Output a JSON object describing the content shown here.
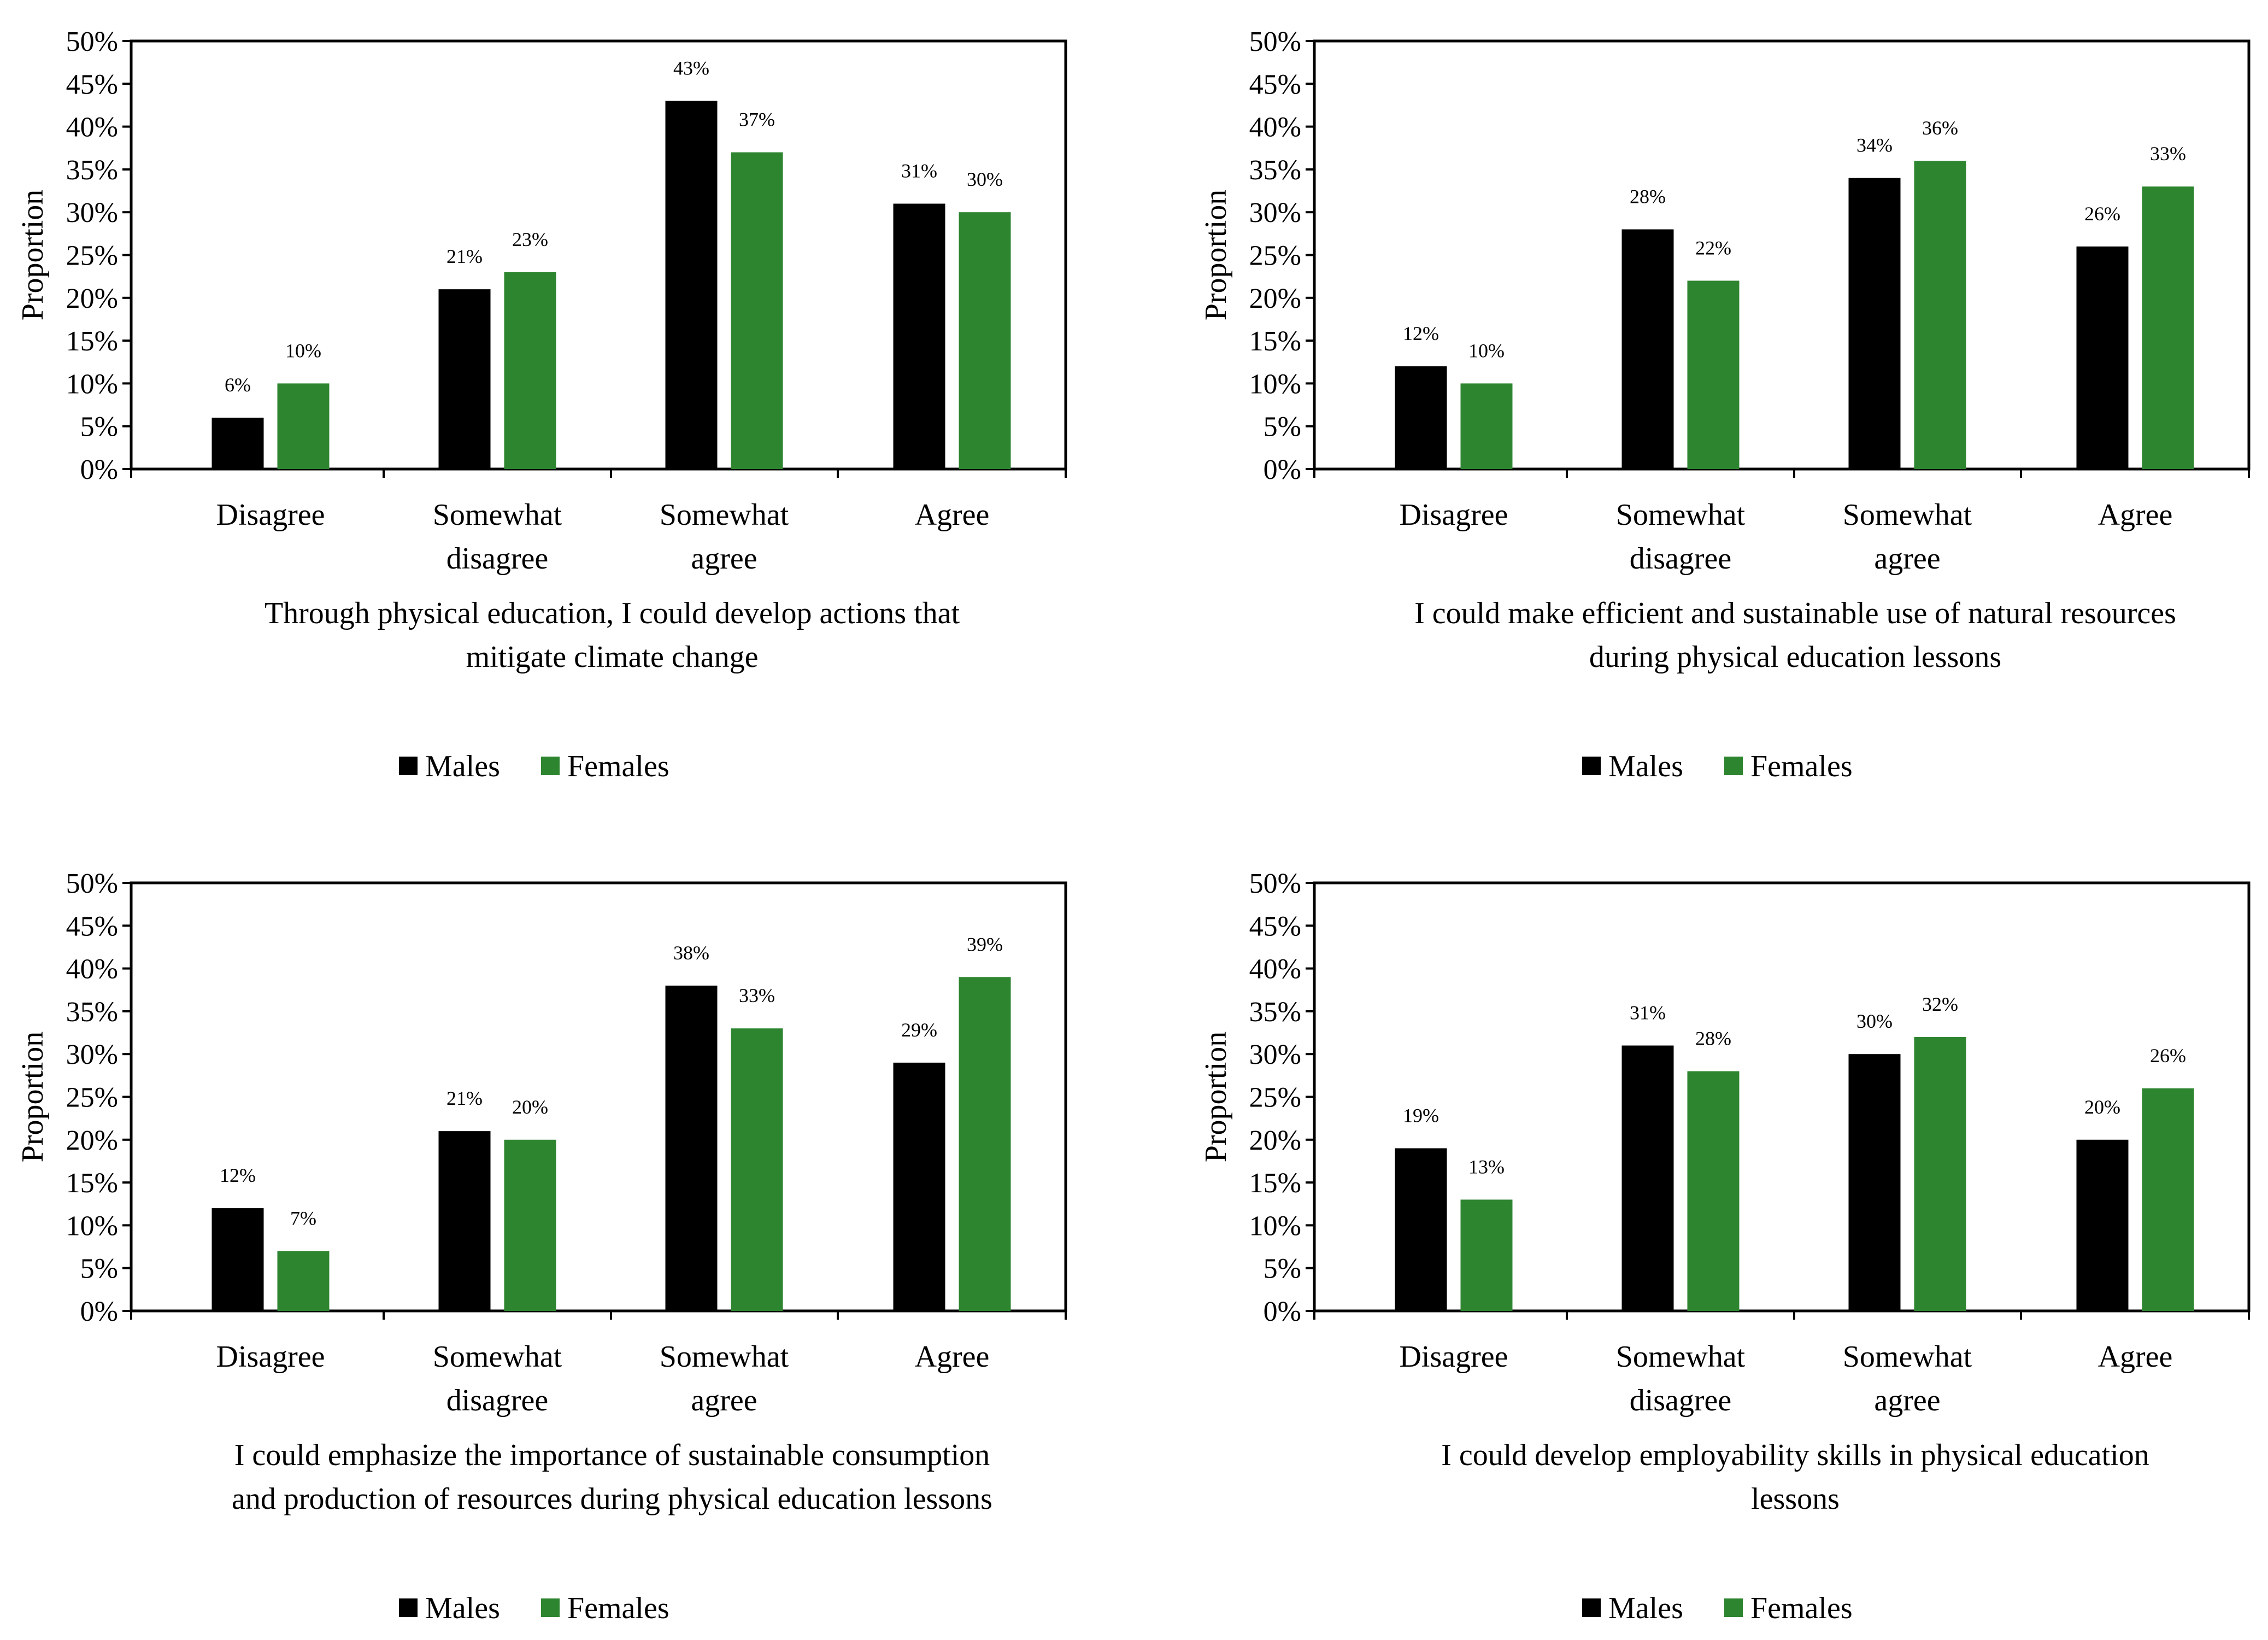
{
  "legend": [
    "Males",
    "Females"
  ],
  "colors": {
    "Males": "#000000",
    "Females": "#2e8530"
  },
  "chart_data": [
    {
      "type": "bar",
      "categories": [
        [
          "Disagree"
        ],
        [
          "Somewhat",
          "disagree"
        ],
        [
          "Somewhat",
          "agree"
        ],
        [
          "Agree"
        ]
      ],
      "series": [
        {
          "name": "Males",
          "values": [
            6,
            21,
            43,
            31
          ],
          "labels": [
            "6%",
            "21%",
            "43%",
            "31%"
          ]
        },
        {
          "name": "Females",
          "values": [
            10,
            23,
            37,
            30
          ],
          "labels": [
            "10%",
            "23%",
            "37%",
            "30%"
          ]
        }
      ],
      "xlabel": [
        "Through physical education, I could develop actions that",
        "mitigate climate change"
      ],
      "ylabel": "Proportion",
      "ylim": [
        0,
        50
      ],
      "yticks": [
        "0%",
        "5%",
        "10%",
        "15%",
        "20%",
        "25%",
        "30%",
        "35%",
        "40%",
        "45%",
        "50%"
      ],
      "grid": false,
      "legend_position": "bottom"
    },
    {
      "type": "bar",
      "categories": [
        [
          "Disagree"
        ],
        [
          "Somewhat",
          "disagree"
        ],
        [
          "Somewhat",
          "agree"
        ],
        [
          "Agree"
        ]
      ],
      "series": [
        {
          "name": "Males",
          "values": [
            12,
            28,
            34,
            26
          ],
          "labels": [
            "12%",
            "28%",
            "34%",
            "26%"
          ]
        },
        {
          "name": "Females",
          "values": [
            10,
            22,
            36,
            33
          ],
          "labels": [
            "10%",
            "22%",
            "36%",
            "33%"
          ]
        }
      ],
      "xlabel": [
        "I could make efficient and sustainable use of natural resources",
        "during physical education lessons"
      ],
      "ylabel": "Proportion",
      "ylim": [
        0,
        50
      ],
      "yticks": [
        "0%",
        "5%",
        "10%",
        "15%",
        "20%",
        "25%",
        "30%",
        "35%",
        "40%",
        "45%",
        "50%"
      ],
      "grid": false,
      "legend_position": "bottom"
    },
    {
      "type": "bar",
      "categories": [
        [
          "Disagree"
        ],
        [
          "Somewhat",
          "disagree"
        ],
        [
          "Somewhat",
          "agree"
        ],
        [
          "Agree"
        ]
      ],
      "series": [
        {
          "name": "Males",
          "values": [
            12,
            21,
            38,
            29
          ],
          "labels": [
            "12%",
            "21%",
            "38%",
            "29%"
          ]
        },
        {
          "name": "Females",
          "values": [
            7,
            20,
            33,
            39
          ],
          "labels": [
            "7%",
            "20%",
            "33%",
            "39%"
          ]
        }
      ],
      "xlabel": [
        "I could emphasize the importance of sustainable consumption",
        "and production of resources during physical education lessons"
      ],
      "ylabel": "Proportion",
      "ylim": [
        0,
        50
      ],
      "yticks": [
        "0%",
        "5%",
        "10%",
        "15%",
        "20%",
        "25%",
        "30%",
        "35%",
        "40%",
        "45%",
        "50%"
      ],
      "grid": false,
      "legend_position": "bottom"
    },
    {
      "type": "bar",
      "categories": [
        [
          "Disagree"
        ],
        [
          "Somewhat",
          "disagree"
        ],
        [
          "Somewhat",
          "agree"
        ],
        [
          "Agree"
        ]
      ],
      "series": [
        {
          "name": "Males",
          "values": [
            19,
            31,
            30,
            20
          ],
          "labels": [
            "19%",
            "31%",
            "30%",
            "20%"
          ]
        },
        {
          "name": "Females",
          "values": [
            13,
            28,
            32,
            26
          ],
          "labels": [
            "13%",
            "28%",
            "32%",
            "26%"
          ]
        }
      ],
      "xlabel": [
        "I could develop employability skills in physical education",
        "lessons"
      ],
      "ylabel": "Proportion",
      "ylim": [
        0,
        50
      ],
      "yticks": [
        "0%",
        "5%",
        "10%",
        "15%",
        "20%",
        "25%",
        "30%",
        "35%",
        "40%",
        "45%",
        "50%"
      ],
      "grid": false,
      "legend_position": "bottom"
    }
  ]
}
